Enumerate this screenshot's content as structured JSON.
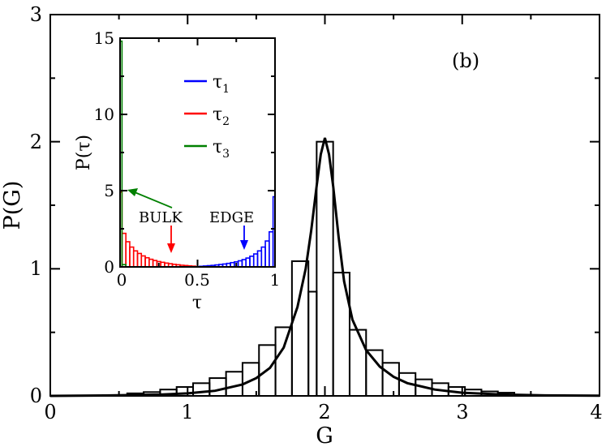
{
  "chart_data": [
    {
      "type": "bar",
      "name": "main-histogram",
      "title": "",
      "panel_label": "(b)",
      "xlabel": "G",
      "ylabel": "P(G)",
      "xlim": [
        0,
        4
      ],
      "ylim": [
        0,
        3
      ],
      "xticks": [
        0,
        1,
        2,
        3,
        4
      ],
      "yticks": [
        0,
        1,
        2,
        3
      ],
      "xtick_labels": [
        "0",
        "1",
        "2",
        "3",
        "4"
      ],
      "ytick_labels": [
        "0",
        "1",
        "2",
        "3"
      ],
      "bin_width": 0.12,
      "bins": [
        {
          "x0": 0.56,
          "x1": 0.68,
          "y": 0.02
        },
        {
          "x0": 0.68,
          "x1": 0.8,
          "y": 0.03
        },
        {
          "x0": 0.8,
          "x1": 0.92,
          "y": 0.05
        },
        {
          "x0": 0.92,
          "x1": 1.04,
          "y": 0.07
        },
        {
          "x0": 1.04,
          "x1": 1.16,
          "y": 0.1
        },
        {
          "x0": 1.16,
          "x1": 1.28,
          "y": 0.14
        },
        {
          "x0": 1.28,
          "x1": 1.4,
          "y": 0.19
        },
        {
          "x0": 1.4,
          "x1": 1.52,
          "y": 0.26
        },
        {
          "x0": 1.52,
          "x1": 1.64,
          "y": 0.4
        },
        {
          "x0": 1.64,
          "x1": 1.76,
          "y": 0.54
        },
        {
          "x0": 1.76,
          "x1": 1.88,
          "y": 1.06
        },
        {
          "x0": 1.88,
          "x1": 1.94,
          "y": 0.82
        },
        {
          "x0": 1.94,
          "x1": 2.06,
          "y": 2.0
        },
        {
          "x0": 2.06,
          "x1": 2.18,
          "y": 0.97
        },
        {
          "x0": 2.18,
          "x1": 2.3,
          "y": 0.52
        },
        {
          "x0": 2.3,
          "x1": 2.42,
          "y": 0.36
        },
        {
          "x0": 2.42,
          "x1": 2.54,
          "y": 0.26
        },
        {
          "x0": 2.54,
          "x1": 2.66,
          "y": 0.18
        },
        {
          "x0": 2.66,
          "x1": 2.78,
          "y": 0.13
        },
        {
          "x0": 2.78,
          "x1": 2.9,
          "y": 0.1
        },
        {
          "x0": 2.9,
          "x1": 3.02,
          "y": 0.07
        },
        {
          "x0": 3.02,
          "x1": 3.14,
          "y": 0.05
        },
        {
          "x0": 3.14,
          "x1": 3.26,
          "y": 0.035
        },
        {
          "x0": 3.26,
          "x1": 3.38,
          "y": 0.025
        }
      ],
      "series": [
        {
          "name": "fit",
          "color": "#000000",
          "points": [
            [
              0.0,
              0.0
            ],
            [
              0.4,
              0.003
            ],
            [
              0.8,
              0.01
            ],
            [
              1.0,
              0.02
            ],
            [
              1.2,
              0.04
            ],
            [
              1.4,
              0.09
            ],
            [
              1.5,
              0.14
            ],
            [
              1.6,
              0.22
            ],
            [
              1.7,
              0.38
            ],
            [
              1.8,
              0.7
            ],
            [
              1.86,
              1.0
            ],
            [
              1.9,
              1.3
            ],
            [
              1.94,
              1.65
            ],
            [
              1.97,
              1.9
            ],
            [
              2.0,
              2.03
            ],
            [
              2.03,
              1.9
            ],
            [
              2.06,
              1.65
            ],
            [
              2.1,
              1.25
            ],
            [
              2.14,
              0.9
            ],
            [
              2.2,
              0.6
            ],
            [
              2.3,
              0.36
            ],
            [
              2.4,
              0.23
            ],
            [
              2.5,
              0.15
            ],
            [
              2.6,
              0.1
            ],
            [
              2.8,
              0.05
            ],
            [
              3.0,
              0.025
            ],
            [
              3.3,
              0.01
            ],
            [
              3.6,
              0.004
            ],
            [
              4.0,
              0.001
            ]
          ]
        }
      ]
    },
    {
      "type": "bar",
      "name": "inset-histogram",
      "title": "",
      "xlabel": "τ",
      "ylabel": "P(τ)",
      "xlim": [
        0,
        1
      ],
      "ylim": [
        0,
        15
      ],
      "xticks": [
        0,
        0.5,
        1
      ],
      "yticks": [
        0,
        5,
        10,
        15
      ],
      "xtick_labels": [
        "0",
        "0.5",
        "1"
      ],
      "ytick_labels": [
        "0",
        "5",
        "10",
        "15"
      ],
      "legend": {
        "position": "top-right",
        "entries": [
          {
            "base": "τ",
            "sub": "1",
            "color": "#0000ff"
          },
          {
            "base": "τ",
            "sub": "2",
            "color": "#ff0000"
          },
          {
            "base": "τ",
            "sub": "3",
            "color": "#008000"
          }
        ]
      },
      "series": [
        {
          "name": "τ1",
          "color": "#0000ff",
          "bin_width": 0.025,
          "bins": [
            {
              "x": 0.525,
              "y": 0.04
            },
            {
              "x": 0.55,
              "y": 0.06
            },
            {
              "x": 0.575,
              "y": 0.08
            },
            {
              "x": 0.6,
              "y": 0.1
            },
            {
              "x": 0.625,
              "y": 0.13
            },
            {
              "x": 0.65,
              "y": 0.16
            },
            {
              "x": 0.675,
              "y": 0.19
            },
            {
              "x": 0.7,
              "y": 0.23
            },
            {
              "x": 0.725,
              "y": 0.28
            },
            {
              "x": 0.75,
              "y": 0.33
            },
            {
              "x": 0.775,
              "y": 0.4
            },
            {
              "x": 0.8,
              "y": 0.48
            },
            {
              "x": 0.825,
              "y": 0.58
            },
            {
              "x": 0.85,
              "y": 0.7
            },
            {
              "x": 0.875,
              "y": 0.85
            },
            {
              "x": 0.9,
              "y": 1.05
            },
            {
              "x": 0.925,
              "y": 1.3
            },
            {
              "x": 0.95,
              "y": 1.7
            },
            {
              "x": 0.975,
              "y": 2.3
            },
            {
              "x": 1.0,
              "y": 4.6
            }
          ]
        },
        {
          "name": "τ2",
          "color": "#ff0000",
          "bin_width": 0.025,
          "bins": [
            {
              "x": 0.0,
              "y": 4.9
            },
            {
              "x": 0.025,
              "y": 2.2
            },
            {
              "x": 0.05,
              "y": 1.65
            },
            {
              "x": 0.075,
              "y": 1.3
            },
            {
              "x": 0.1,
              "y": 1.05
            },
            {
              "x": 0.125,
              "y": 0.88
            },
            {
              "x": 0.15,
              "y": 0.72
            },
            {
              "x": 0.175,
              "y": 0.6
            },
            {
              "x": 0.2,
              "y": 0.5
            },
            {
              "x": 0.225,
              "y": 0.42
            },
            {
              "x": 0.25,
              "y": 0.35
            },
            {
              "x": 0.275,
              "y": 0.3
            },
            {
              "x": 0.3,
              "y": 0.25
            },
            {
              "x": 0.325,
              "y": 0.21
            },
            {
              "x": 0.35,
              "y": 0.17
            },
            {
              "x": 0.375,
              "y": 0.14
            },
            {
              "x": 0.4,
              "y": 0.11
            },
            {
              "x": 0.425,
              "y": 0.09
            },
            {
              "x": 0.45,
              "y": 0.07
            },
            {
              "x": 0.475,
              "y": 0.05
            }
          ]
        },
        {
          "name": "τ3",
          "color": "#008000",
          "bin_width": 0.025,
          "bins": [
            {
              "x": 0.0,
              "y": 14.8
            },
            {
              "x": 0.025,
              "y": 0.15
            }
          ]
        }
      ],
      "annotations": [
        {
          "text": "BULK",
          "arrow_color": "#ff0000",
          "arrow_to": [
            0.33,
            0.5
          ]
        },
        {
          "text": "EDGE",
          "arrow_color": "#0000ff",
          "arrow_to": [
            0.795,
            0.8
          ]
        },
        {
          "text": "",
          "arrow_color": "#008000",
          "arrow_to": [
            0.04,
            5.2
          ]
        }
      ]
    }
  ]
}
